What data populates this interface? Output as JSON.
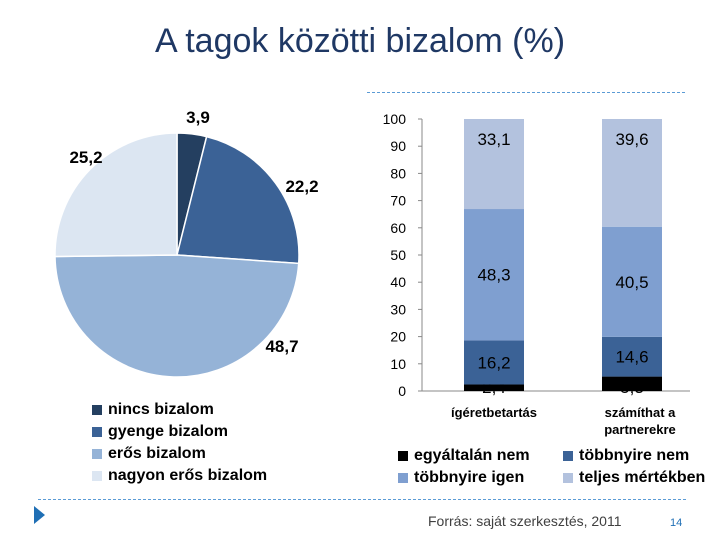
{
  "title": "A tagok közötti bizalom (%)",
  "colors": {
    "c1": "#243f60",
    "c2": "#3b6296",
    "c3": "#95b3d7",
    "c4": "#dce6f2",
    "bar_c1": "#000000",
    "bar_c2": "#3b6296",
    "bar_c3": "#7f9fd0",
    "bar_c4": "#b3c2de",
    "accent": "#1f6fb5"
  },
  "chart_data": [
    {
      "type": "pie",
      "categories": [
        "nincs bizalom",
        "gyenge bizalom",
        "erős bizalom",
        "nagyon erős bizalom"
      ],
      "values": [
        3.9,
        22.2,
        48.7,
        25.2
      ],
      "labels": [
        "3,9",
        "22,2",
        "48,7",
        "25,2"
      ],
      "legend": [
        "nincs bizalom",
        "gyenge bizalom",
        "erős bizalom",
        "nagyon erős bizalom"
      ],
      "legend_position": "bottom"
    },
    {
      "type": "bar",
      "stacked": true,
      "categories": [
        "ígéretbetartás",
        "számíthat a partnerekre"
      ],
      "category_lines": [
        [
          "ígéretbetartás"
        ],
        [
          "számíthat a",
          "partnerekre"
        ]
      ],
      "series": [
        {
          "name": "egyáltalán nem",
          "values": [
            2.4,
            5.3
          ],
          "labels": [
            "2,4",
            "5,3"
          ]
        },
        {
          "name": "többnyire nem",
          "values": [
            16.2,
            14.6
          ],
          "labels": [
            "16,2",
            "14,6"
          ]
        },
        {
          "name": "többnyire igen",
          "values": [
            48.3,
            40.5
          ],
          "labels": [
            "48,3",
            "40,5"
          ]
        },
        {
          "name": "teljes mértékben",
          "values": [
            33.1,
            39.6
          ],
          "labels": [
            "33,1",
            "39,6"
          ]
        }
      ],
      "ylim": [
        0,
        100
      ],
      "yticks": [
        0,
        10,
        20,
        30,
        40,
        50,
        60,
        70,
        80,
        90,
        100
      ],
      "grid": false,
      "legend_position": "bottom"
    }
  ],
  "footer": {
    "source": "Forrás: saját szerkesztés, 2011",
    "page": "14"
  }
}
